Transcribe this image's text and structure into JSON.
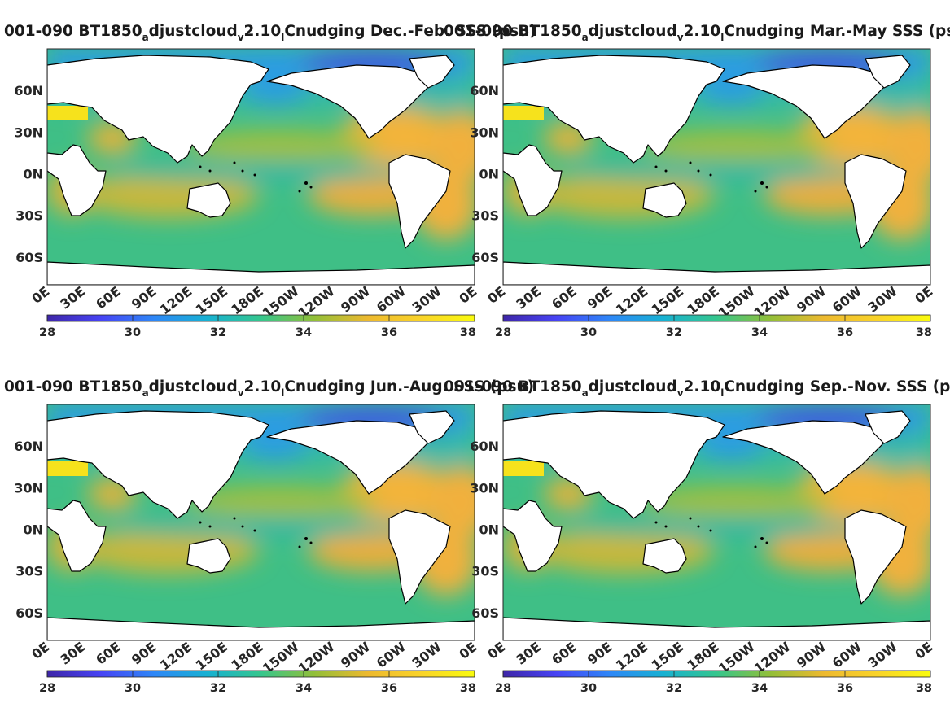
{
  "figure": {
    "panels": [
      {
        "title_parts": [
          "001-090 BT1850",
          "a",
          "djustcloud",
          "v",
          "2.10",
          "l",
          "Cnudging Dec.-Feb. SSS (psu)"
        ],
        "season": "DJF"
      },
      {
        "title_parts": [
          "001-090 BT1850",
          "a",
          "djustcloud",
          "v",
          "2.10",
          "l",
          "Cnudging Mar.-May SSS (psu)"
        ],
        "season": "MAM"
      },
      {
        "title_parts": [
          "001-090 BT1850",
          "a",
          "djustcloud",
          "v",
          "2.10",
          "l",
          "Cnudging Jun.-Aug. SSS (psu)"
        ],
        "season": "JJA"
      },
      {
        "title_parts": [
          "001-090 BT1850",
          "a",
          "djustcloud",
          "v",
          "2.10",
          "l",
          "Cnudging Sep.-Nov. SSS (psu)"
        ],
        "season": "SON"
      }
    ],
    "lat_ticks": [
      "60N",
      "30N",
      "0N",
      "30S",
      "60S"
    ],
    "lat_values": [
      60,
      30,
      0,
      -30,
      -60
    ],
    "lon_ticks": [
      "0E",
      "30E",
      "60E",
      "90E",
      "120E",
      "150E",
      "180E",
      "150W",
      "120W",
      "90W",
      "60W",
      "30W",
      "0E"
    ],
    "colorbar": {
      "ticks": [
        "28",
        "30",
        "32",
        "34",
        "36",
        "38"
      ],
      "range": [
        28,
        38
      ],
      "colors": [
        "#3e26a8",
        "#4743f4",
        "#2e87f7",
        "#17b1d2",
        "#35c68d",
        "#92bf38",
        "#edb92f",
        "#f9d329",
        "#f9fb0e"
      ]
    },
    "colors": {
      "land": "#ffffff",
      "coastline": "#000000",
      "ocean_typical": "#3fbf86",
      "subtropical_high": "#f3b43a",
      "arctic_low": "#3f46d8"
    }
  },
  "chart_data": {
    "type": "heatmap",
    "variable": "SSS",
    "units": "psu",
    "colorbar_range": [
      28,
      38
    ],
    "panels": [
      "Dec.-Feb.",
      "Mar.-May",
      "Jun.-Aug.",
      "Sep.-Nov."
    ],
    "lat_range": [
      -80,
      90
    ],
    "lon_range": [
      0,
      360
    ]
  }
}
